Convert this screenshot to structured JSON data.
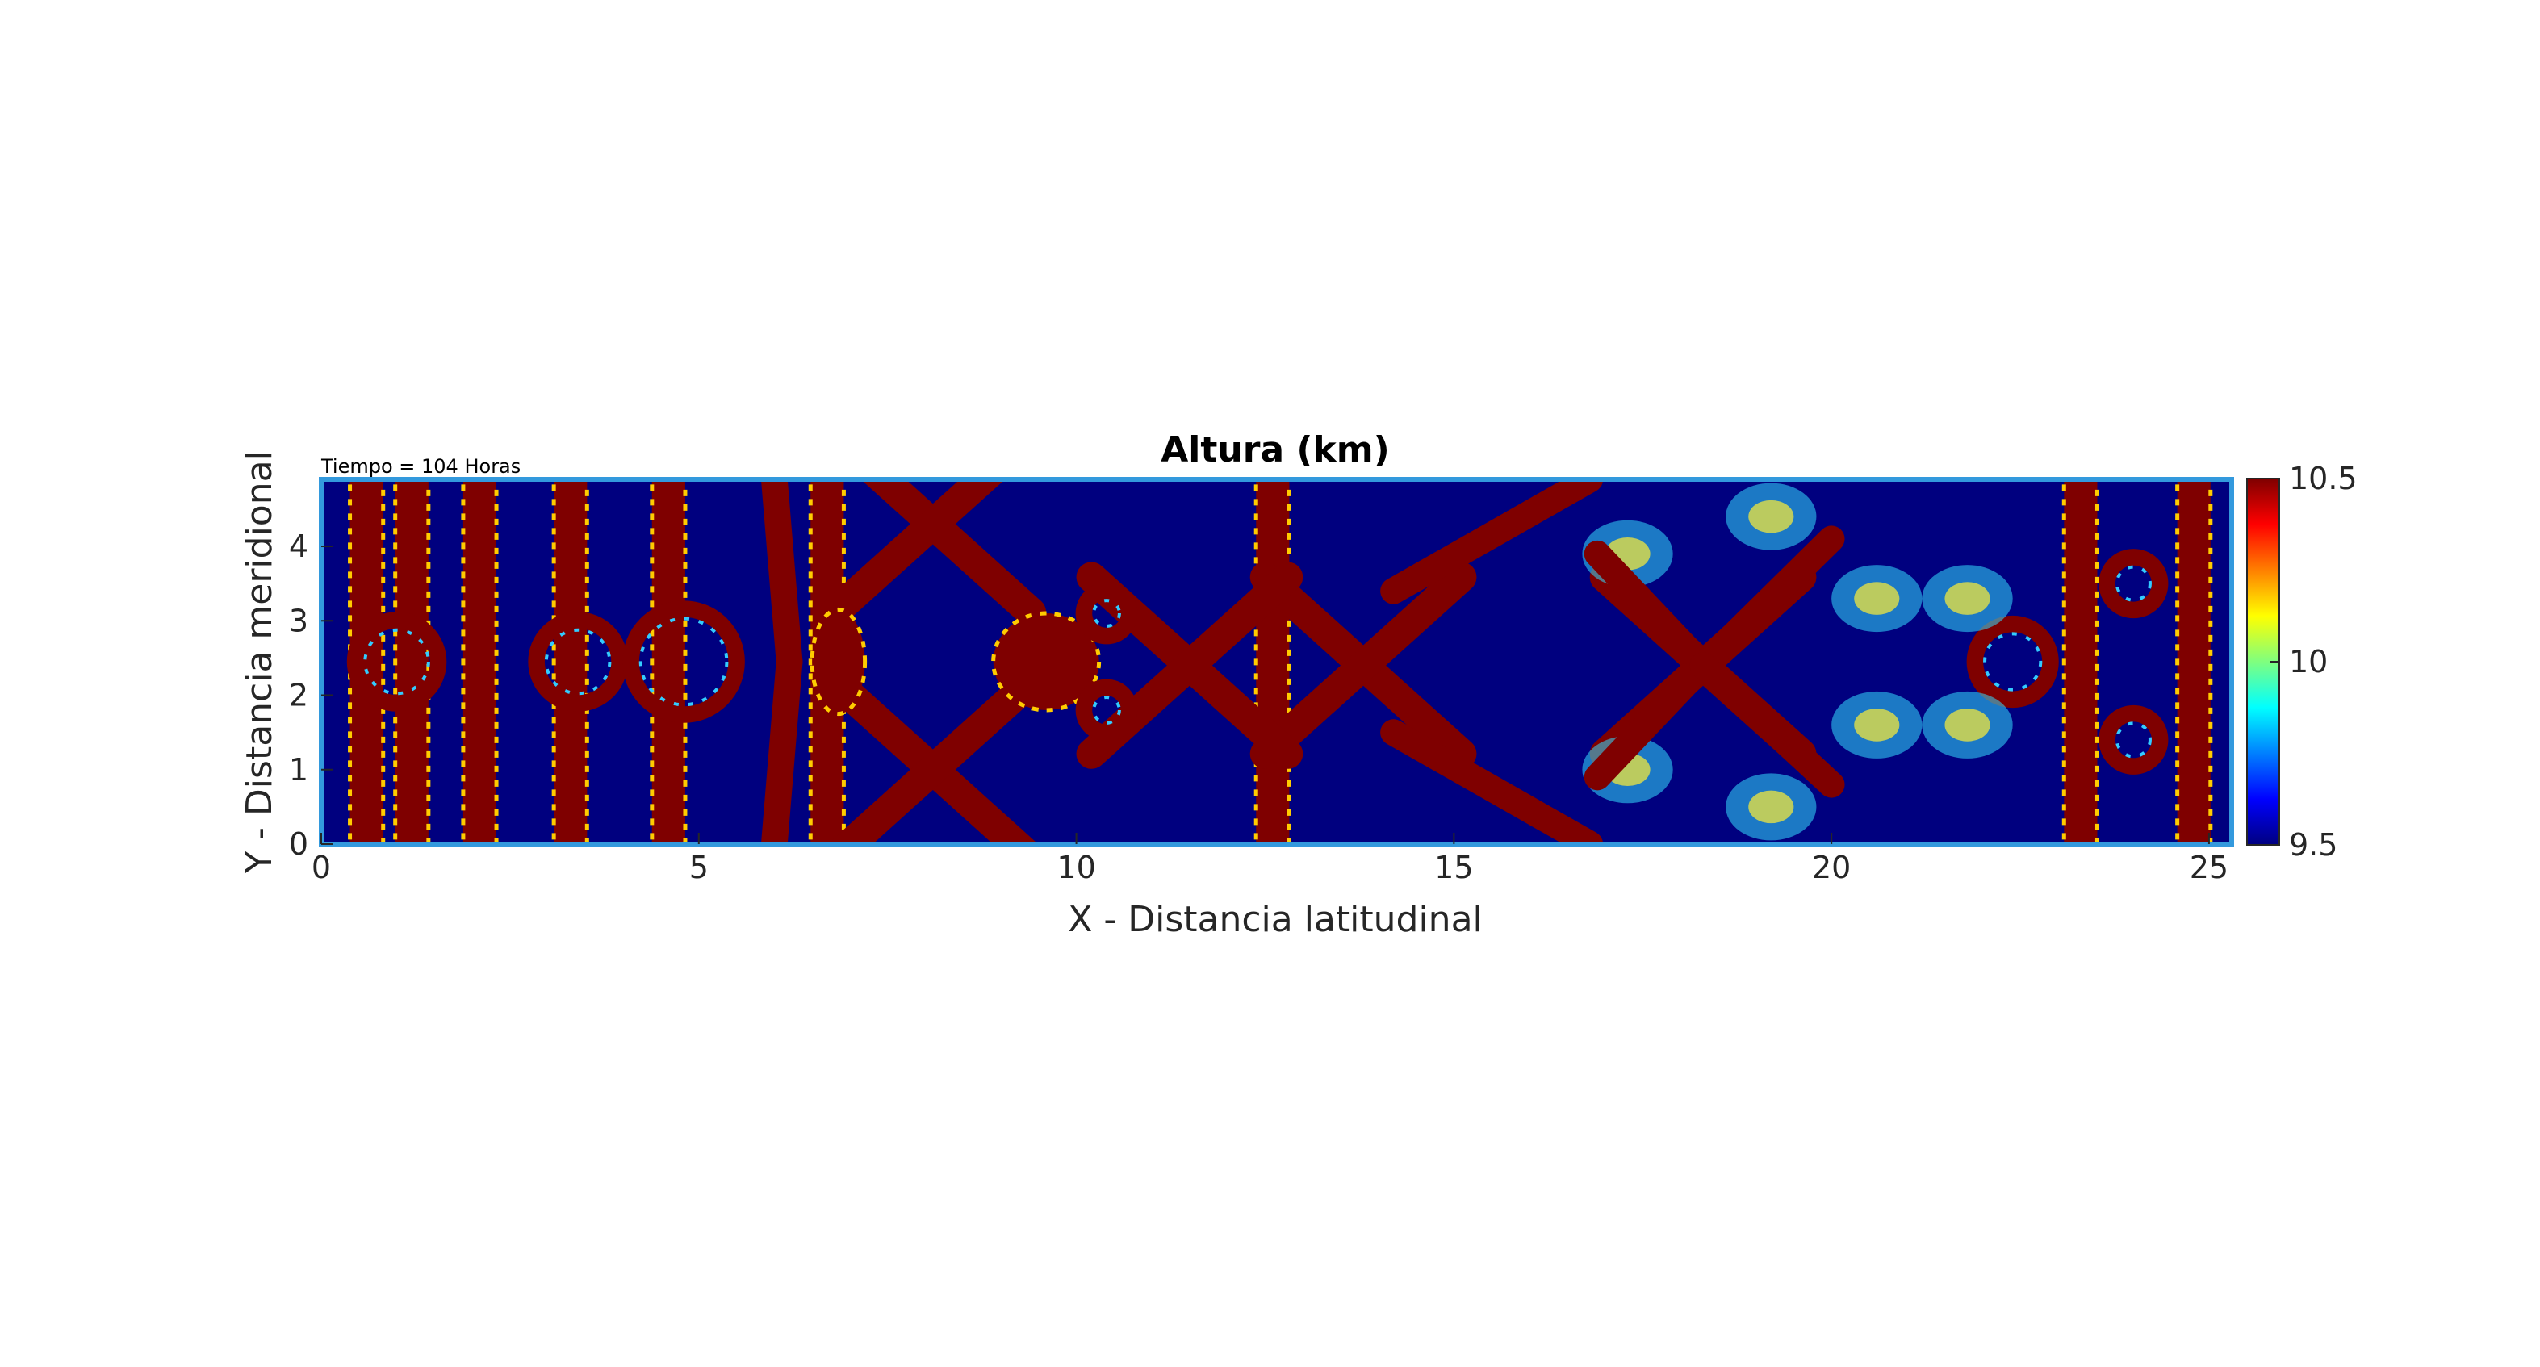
{
  "figure": {
    "title": "Altura (km)",
    "annotation": "Tiempo = 104 Horas"
  },
  "chart_data": {
    "type": "heatmap",
    "title": "Altura (km)",
    "annotation": "Tiempo = 104 Horas",
    "xlabel": "X - Distancia latitudinal",
    "ylabel": "Y - Distancia meridional",
    "xlim": [
      0,
      25.3
    ],
    "ylim": [
      0,
      4.9
    ],
    "x_ticks": [
      0,
      5,
      10,
      15,
      20,
      25
    ],
    "y_ticks": [
      0,
      1,
      2,
      3,
      4
    ],
    "colormap": "jet",
    "clim": [
      9.5,
      10.5
    ],
    "colorbar_ticks": [
      9.5,
      10,
      10.5
    ],
    "colorbar_labels": [
      "9.5",
      "10",
      "10.5"
    ],
    "grid": false,
    "colors": {
      "low": "#00007f",
      "mid": "#7fff7f",
      "high": "#7f0000",
      "frame": "#3399dd"
    },
    "field_description_points": {
      "vertical_bands_x": [
        0.6,
        1.2,
        2.1,
        3.3,
        4.6,
        6.7,
        12.6,
        23.3,
        24.8
      ],
      "x_crossings": [
        {
          "x": 8.1,
          "y": 1.0
        },
        {
          "x": 8.1,
          "y": 4.3
        },
        {
          "x": 13.8,
          "y": 2.4
        },
        {
          "x": 18.3,
          "y": 2.4
        },
        {
          "x": 11.5,
          "y": 2.4
        }
      ],
      "solid_blobs": [
        {
          "x": 9.6,
          "y": 2.45,
          "w": 1.4,
          "h": 1.3
        },
        {
          "x": 6.85,
          "y": 2.45,
          "w": 0.7,
          "h": 1.4
        }
      ],
      "rings": [
        {
          "x": 1.0,
          "y": 2.45,
          "r": 0.55
        },
        {
          "x": 3.4,
          "y": 2.45,
          "r": 0.55
        },
        {
          "x": 4.8,
          "y": 2.45,
          "r": 0.7
        },
        {
          "x": 10.4,
          "y": 3.1,
          "r": 0.3
        },
        {
          "x": 10.4,
          "y": 1.8,
          "r": 0.3
        },
        {
          "x": 22.4,
          "y": 2.45,
          "r": 0.5
        },
        {
          "x": 24.0,
          "y": 3.5,
          "r": 0.35
        },
        {
          "x": 24.0,
          "y": 1.4,
          "r": 0.35
        }
      ]
    }
  }
}
